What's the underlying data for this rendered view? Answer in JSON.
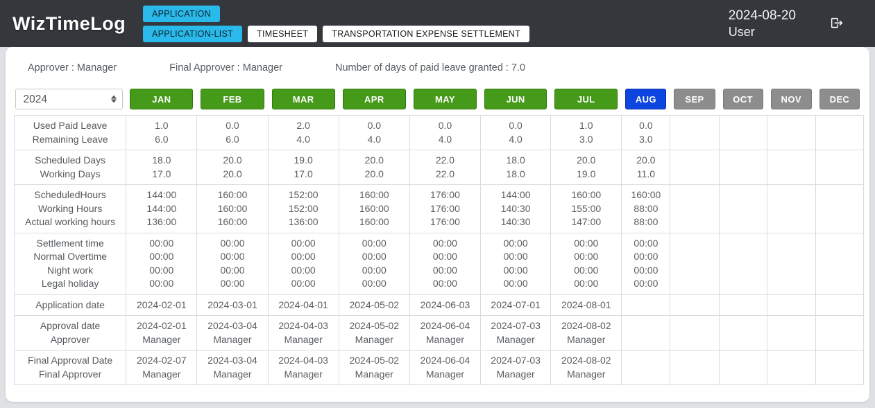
{
  "header": {
    "logo": "WizTimeLog",
    "buttons": {
      "application": "APPLICATION",
      "application_list": "APPLICATION-LIST",
      "timesheet": "TIMESHEET",
      "transport": "TRANSPORTATION EXPENSE SETTLEMENT"
    },
    "date": "2024-08-20",
    "user": "User",
    "logout_icon": "logout-icon"
  },
  "info": {
    "approver": "Approver : Manager",
    "final_approver": "Final Approver : Manager",
    "paid_leave_granted": "Number of days of paid leave granted : 7.0"
  },
  "colors": {
    "topbar": "#34383d",
    "accent_cyan": "#29b9ea",
    "month_past_green": "#459a1a",
    "month_current_blue": "#0d45e0",
    "month_future_gray": "#8d8d8d",
    "table_border": "#d8dce1"
  },
  "table": {
    "year": "2024",
    "months": [
      {
        "label": "JAN",
        "state": "past"
      },
      {
        "label": "FEB",
        "state": "past"
      },
      {
        "label": "MAR",
        "state": "past"
      },
      {
        "label": "APR",
        "state": "past"
      },
      {
        "label": "MAY",
        "state": "past"
      },
      {
        "label": "JUN",
        "state": "past"
      },
      {
        "label": "JUL",
        "state": "past"
      },
      {
        "label": "AUG",
        "state": "current"
      },
      {
        "label": "SEP",
        "state": "future"
      },
      {
        "label": "OCT",
        "state": "future"
      },
      {
        "label": "NOV",
        "state": "future"
      },
      {
        "label": "DEC",
        "state": "future"
      }
    ],
    "rows": [
      {
        "labels": [
          "Used Paid Leave",
          "Remaining Leave"
        ],
        "cells": [
          [
            "1.0",
            "6.0"
          ],
          [
            "0.0",
            "6.0"
          ],
          [
            "2.0",
            "4.0"
          ],
          [
            "0.0",
            "4.0"
          ],
          [
            "0.0",
            "4.0"
          ],
          [
            "0.0",
            "4.0"
          ],
          [
            "1.0",
            "3.0"
          ],
          [
            "0.0",
            "3.0"
          ],
          [],
          [],
          [],
          []
        ]
      },
      {
        "labels": [
          "Scheduled Days",
          "Working Days"
        ],
        "cells": [
          [
            "18.0",
            "17.0"
          ],
          [
            "20.0",
            "20.0"
          ],
          [
            "19.0",
            "17.0"
          ],
          [
            "20.0",
            "20.0"
          ],
          [
            "22.0",
            "22.0"
          ],
          [
            "18.0",
            "18.0"
          ],
          [
            "20.0",
            "19.0"
          ],
          [
            "20.0",
            "11.0"
          ],
          [],
          [],
          [],
          []
        ]
      },
      {
        "labels": [
          "ScheduledHours",
          "Working Hours",
          "Actual working hours"
        ],
        "cells": [
          [
            "144:00",
            "144:00",
            "136:00"
          ],
          [
            "160:00",
            "160:00",
            "160:00"
          ],
          [
            "152:00",
            "152:00",
            "136:00"
          ],
          [
            "160:00",
            "160:00",
            "160:00"
          ],
          [
            "176:00",
            "176:00",
            "176:00"
          ],
          [
            "144:00",
            "140:30",
            "140:30"
          ],
          [
            "160:00",
            "155:00",
            "147:00"
          ],
          [
            "160:00",
            "88:00",
            "88:00"
          ],
          [],
          [],
          [],
          []
        ]
      },
      {
        "labels": [
          "Settlement time",
          "Normal Overtime",
          "Night work",
          "Legal holiday"
        ],
        "cells": [
          [
            "00:00",
            "00:00",
            "00:00",
            "00:00"
          ],
          [
            "00:00",
            "00:00",
            "00:00",
            "00:00"
          ],
          [
            "00:00",
            "00:00",
            "00:00",
            "00:00"
          ],
          [
            "00:00",
            "00:00",
            "00:00",
            "00:00"
          ],
          [
            "00:00",
            "00:00",
            "00:00",
            "00:00"
          ],
          [
            "00:00",
            "00:00",
            "00:00",
            "00:00"
          ],
          [
            "00:00",
            "00:00",
            "00:00",
            "00:00"
          ],
          [
            "00:00",
            "00:00",
            "00:00",
            "00:00"
          ],
          [],
          [],
          [],
          []
        ]
      },
      {
        "labels": [
          "Application date"
        ],
        "cells": [
          [
            "2024-02-01"
          ],
          [
            "2024-03-01"
          ],
          [
            "2024-04-01"
          ],
          [
            "2024-05-02"
          ],
          [
            "2024-06-03"
          ],
          [
            "2024-07-01"
          ],
          [
            "2024-08-01"
          ],
          [],
          [],
          [],
          [],
          []
        ]
      },
      {
        "labels": [
          "Approval date",
          "Approver"
        ],
        "cells": [
          [
            "2024-02-01",
            "Manager"
          ],
          [
            "2024-03-04",
            "Manager"
          ],
          [
            "2024-04-03",
            "Manager"
          ],
          [
            "2024-05-02",
            "Manager"
          ],
          [
            "2024-06-04",
            "Manager"
          ],
          [
            "2024-07-03",
            "Manager"
          ],
          [
            "2024-08-02",
            "Manager"
          ],
          [],
          [],
          [],
          [],
          []
        ]
      },
      {
        "labels": [
          "Final Approval Date",
          "Final Approver"
        ],
        "cells": [
          [
            "2024-02-07",
            "Manager"
          ],
          [
            "2024-03-04",
            "Manager"
          ],
          [
            "2024-04-03",
            "Manager"
          ],
          [
            "2024-05-02",
            "Manager"
          ],
          [
            "2024-06-04",
            "Manager"
          ],
          [
            "2024-07-03",
            "Manager"
          ],
          [
            "2024-08-02",
            "Manager"
          ],
          [],
          [],
          [],
          [],
          []
        ]
      }
    ]
  }
}
